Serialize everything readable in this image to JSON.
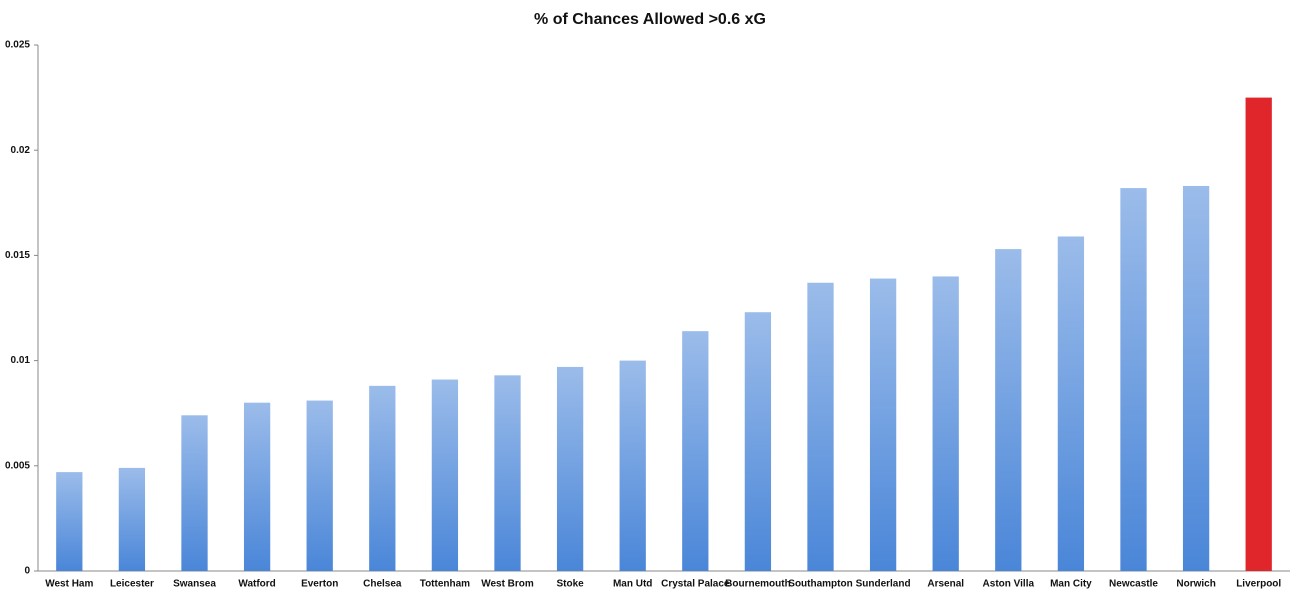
{
  "chart_data": {
    "type": "bar",
    "title": "% of Chances Allowed >0.6 xG",
    "categories": [
      "West Ham",
      "Leicester",
      "Swansea",
      "Watford",
      "Everton",
      "Chelsea",
      "Tottenham",
      "West Brom",
      "Stoke",
      "Man Utd",
      "Crystal Palace",
      "Bournemouth",
      "Southampton",
      "Sunderland",
      "Arsenal",
      "Aston Villa",
      "Man City",
      "Newcastle",
      "Norwich",
      "Liverpool"
    ],
    "values": [
      0.0047,
      0.0049,
      0.0074,
      0.008,
      0.0081,
      0.0088,
      0.0091,
      0.0093,
      0.0097,
      0.01,
      0.0114,
      0.0123,
      0.0137,
      0.0139,
      0.014,
      0.0153,
      0.0159,
      0.0182,
      0.0183,
      0.0225
    ],
    "colors": [
      "#4a86d8",
      "#4a86d8",
      "#4a86d8",
      "#4a86d8",
      "#4a86d8",
      "#4a86d8",
      "#4a86d8",
      "#4a86d8",
      "#4a86d8",
      "#4a86d8",
      "#4a86d8",
      "#4a86d8",
      "#4a86d8",
      "#4a86d8",
      "#4a86d8",
      "#4a86d8",
      "#4a86d8",
      "#4a86d8",
      "#4a86d8",
      "#e0262b"
    ],
    "ylim": [
      0,
      0.025
    ],
    "yticks": [
      0,
      0.005,
      0.01,
      0.015,
      0.02,
      0.025
    ],
    "grid": false
  }
}
